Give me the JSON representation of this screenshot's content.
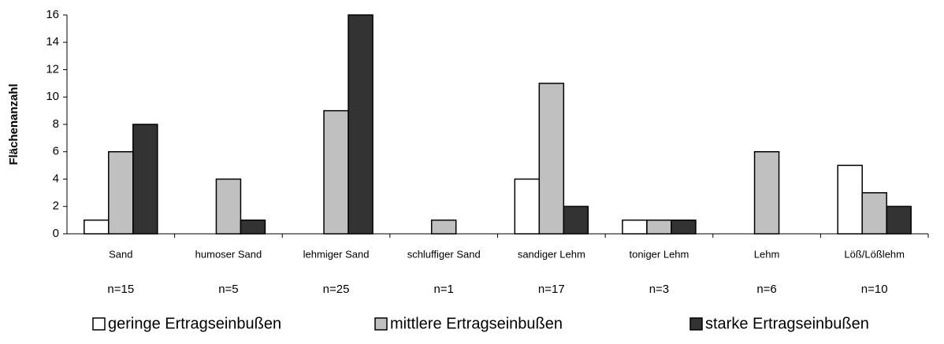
{
  "chart_data": {
    "type": "bar",
    "y_label": "Flächenanzahl",
    "categories": [
      "Sand",
      "humoser Sand",
      "lehmiger Sand",
      "schluffiger Sand",
      "sandiger Lehm",
      "toniger Lehm",
      "Lehm",
      "Löß/Lößlehm"
    ],
    "annotations": [
      "n=15",
      "n=5",
      "n=25",
      "n=1",
      "n=17",
      "n=3",
      "n=6",
      "n=10"
    ],
    "series": [
      {
        "name": "geringe Ertragseinbußen",
        "color": "#ffffff",
        "values": [
          1,
          0,
          0,
          0,
          4,
          1,
          0,
          5
        ]
      },
      {
        "name": "mittlere Ertragseinbußen",
        "color": "#c0c0c0",
        "values": [
          6,
          4,
          9,
          1,
          11,
          1,
          6,
          3
        ]
      },
      {
        "name": "starke Ertragseinbußen",
        "color": "#333333",
        "values": [
          8,
          1,
          16,
          0,
          2,
          1,
          0,
          2
        ]
      }
    ],
    "ylim": [
      0,
      16
    ],
    "yticks": [
      0,
      2,
      4,
      6,
      8,
      10,
      12,
      14,
      16
    ],
    "legend": "bottom"
  }
}
